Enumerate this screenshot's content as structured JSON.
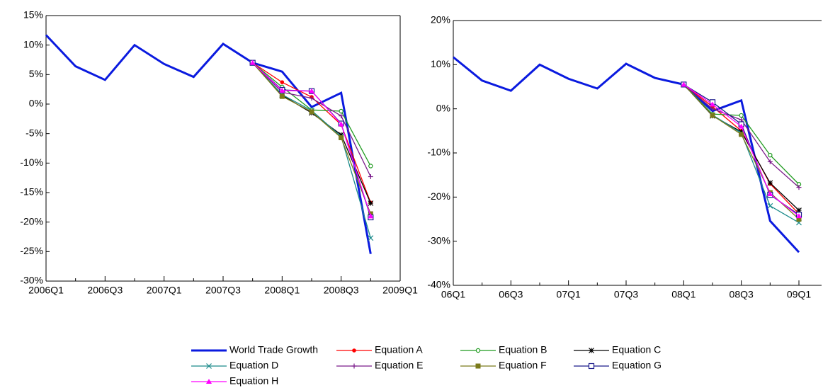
{
  "chart_data": [
    {
      "type": "line",
      "categories": [
        "2006Q1",
        null,
        "2006Q3",
        null,
        "2007Q1",
        null,
        "2007Q3",
        null,
        "2008Q1",
        null,
        "2008Q3",
        null,
        "2009Q1"
      ],
      "ylim": [
        -30,
        15
      ],
      "yticks": [
        {
          "value": -30,
          "label": "-30%"
        },
        {
          "value": -25,
          "label": "-25%"
        },
        {
          "value": -20,
          "label": "-20%"
        },
        {
          "value": -15,
          "label": "-15%"
        },
        {
          "value": -10,
          "label": "-10%"
        },
        {
          "value": -5,
          "label": "-5%"
        },
        {
          "value": 0,
          "label": "0%"
        },
        {
          "value": 5,
          "label": "5%"
        },
        {
          "value": 10,
          "label": "10%"
        },
        {
          "value": 15,
          "label": "15%"
        }
      ],
      "series": [
        {
          "name": "World Trade Growth",
          "color": "#0a1adf",
          "marker": "none",
          "values": [
            11.7,
            6.4,
            4.1,
            10.0,
            6.8,
            4.6,
            10.2,
            7.0,
            5.5,
            -0.5,
            1.9,
            -25.4,
            null
          ]
        },
        {
          "name": "Equation A",
          "color": "#ff0000",
          "marker": "dot",
          "values": [
            null,
            null,
            null,
            null,
            null,
            null,
            null,
            7.0,
            3.7,
            1.2,
            -3.5,
            -16.7,
            null
          ]
        },
        {
          "name": "Equation B",
          "color": "#1e9a1e",
          "marker": "circle",
          "values": [
            null,
            null,
            null,
            null,
            null,
            null,
            null,
            7.0,
            2.9,
            -1.0,
            -1.2,
            -10.5,
            null
          ]
        },
        {
          "name": "Equation C",
          "color": "#000000",
          "marker": "star",
          "values": [
            null,
            null,
            null,
            null,
            null,
            null,
            null,
            7.0,
            1.5,
            -1.5,
            -5.2,
            -16.8,
            null
          ]
        },
        {
          "name": "Equation D",
          "color": "#1a8a8a",
          "marker": "x",
          "values": [
            null,
            null,
            null,
            null,
            null,
            null,
            null,
            7.0,
            1.6,
            -1.1,
            -5.5,
            -22.7,
            null
          ]
        },
        {
          "name": "Equation E",
          "color": "#7a1a8a",
          "marker": "plus",
          "values": [
            null,
            null,
            null,
            null,
            null,
            null,
            null,
            7.0,
            2.0,
            1.0,
            -2.0,
            -12.3,
            null
          ]
        },
        {
          "name": "Equation F",
          "color": "#7a7a1a",
          "marker": "square",
          "values": [
            null,
            null,
            null,
            null,
            null,
            null,
            null,
            7.0,
            1.3,
            -1.3,
            -5.7,
            -18.6,
            null
          ]
        },
        {
          "name": "Equation G",
          "color": "#1a1a8a",
          "marker": "opensquare",
          "values": [
            null,
            null,
            null,
            null,
            null,
            null,
            null,
            7.0,
            2.4,
            2.2,
            -3.3,
            -19.2,
            null
          ]
        },
        {
          "name": "Equation H",
          "color": "#ff00ff",
          "marker": "triangle",
          "values": [
            null,
            null,
            null,
            null,
            null,
            null,
            null,
            7.0,
            2.3,
            2.2,
            -3.4,
            -19.0,
            null
          ]
        }
      ]
    },
    {
      "type": "line",
      "categories": [
        "06Q1",
        null,
        "06Q3",
        null,
        "07Q1",
        null,
        "07Q3",
        null,
        "08Q1",
        null,
        "08Q3",
        null,
        "09Q1"
      ],
      "ylim": [
        -40,
        20
      ],
      "yticks": [
        {
          "value": -40,
          "label": "-40%"
        },
        {
          "value": -30,
          "label": "-30%"
        },
        {
          "value": -20,
          "label": "-20%"
        },
        {
          "value": -10,
          "label": "-10%"
        },
        {
          "value": 0,
          "label": "0%"
        },
        {
          "value": 10,
          "label": "10%"
        },
        {
          "value": 20,
          "label": "20%"
        }
      ],
      "series": [
        {
          "values": [
            11.7,
            6.4,
            4.1,
            10.0,
            6.8,
            4.6,
            10.2,
            7.0,
            5.5,
            -0.5,
            1.9,
            -25.4,
            -32.5
          ]
        },
        {
          "values": [
            null,
            null,
            null,
            null,
            null,
            null,
            null,
            null,
            5.5,
            0.5,
            -5.0,
            -17.0,
            -23.8
          ]
        },
        {
          "values": [
            null,
            null,
            null,
            null,
            null,
            null,
            null,
            null,
            5.5,
            -1.2,
            -1.5,
            -10.5,
            -17.1
          ]
        },
        {
          "values": [
            null,
            null,
            null,
            null,
            null,
            null,
            null,
            null,
            5.5,
            -1.6,
            -5.2,
            -16.8,
            -23.0
          ]
        },
        {
          "values": [
            null,
            null,
            null,
            null,
            null,
            null,
            null,
            null,
            5.5,
            -1.4,
            -5.5,
            -22.0,
            -25.8
          ]
        },
        {
          "values": [
            null,
            null,
            null,
            null,
            null,
            null,
            null,
            null,
            5.5,
            0.0,
            -2.5,
            -12.0,
            -17.8
          ]
        },
        {
          "values": [
            null,
            null,
            null,
            null,
            null,
            null,
            null,
            null,
            5.5,
            -1.5,
            -5.8,
            -19.0,
            -25.0
          ]
        },
        {
          "values": [
            null,
            null,
            null,
            null,
            null,
            null,
            null,
            null,
            5.5,
            1.5,
            -3.5,
            -19.5,
            -24.0
          ]
        },
        {
          "values": [
            null,
            null,
            null,
            null,
            null,
            null,
            null,
            null,
            5.5,
            1.0,
            -4.0,
            -19.3,
            -24.3
          ]
        }
      ]
    }
  ]
}
